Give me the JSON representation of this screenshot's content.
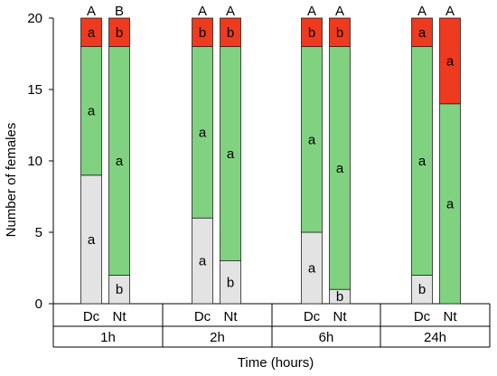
{
  "chart_data": {
    "type": "bar",
    "stacked": true,
    "ylabel": "Number of females",
    "xlabel": "Time (hours)",
    "ylim": [
      0,
      20
    ],
    "yticks": [
      0,
      5,
      10,
      15,
      20
    ],
    "groups": [
      "1h",
      "2h",
      "6h",
      "24h"
    ],
    "bar_labels": [
      "Dc",
      "Nt"
    ],
    "colors": {
      "bottom": "#e3e3e3",
      "middle": "#80d280",
      "top": "#ee3a1e"
    },
    "bars": [
      {
        "group": "1h",
        "label": "Dc",
        "values": [
          9,
          9,
          2
        ],
        "letters": [
          "a",
          "a",
          "a"
        ],
        "top_letter": "A"
      },
      {
        "group": "1h",
        "label": "Nt",
        "values": [
          2,
          16,
          2
        ],
        "letters": [
          "b",
          "a",
          "b"
        ],
        "top_letter": "B"
      },
      {
        "group": "2h",
        "label": "Dc",
        "values": [
          6,
          12,
          2
        ],
        "letters": [
          "a",
          "a",
          "b"
        ],
        "top_letter": "A"
      },
      {
        "group": "2h",
        "label": "Nt",
        "values": [
          3,
          15,
          2
        ],
        "letters": [
          "b",
          "a",
          "b"
        ],
        "top_letter": "A"
      },
      {
        "group": "6h",
        "label": "Dc",
        "values": [
          5,
          13,
          2
        ],
        "letters": [
          "a",
          "a",
          "b"
        ],
        "top_letter": "A"
      },
      {
        "group": "6h",
        "label": "Nt",
        "values": [
          1,
          17,
          2
        ],
        "letters": [
          "b",
          "a",
          "b"
        ],
        "top_letter": "A"
      },
      {
        "group": "24h",
        "label": "Dc",
        "values": [
          2,
          16,
          2
        ],
        "letters": [
          "b",
          "a",
          "a"
        ],
        "top_letter": "A"
      },
      {
        "group": "24h",
        "label": "Nt",
        "values": [
          0,
          14,
          6
        ],
        "letters": [
          "",
          "a",
          "a"
        ],
        "top_letter": "A"
      }
    ]
  }
}
